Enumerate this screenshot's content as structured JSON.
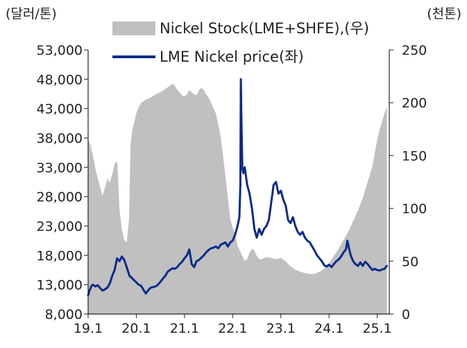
{
  "chart_data": {
    "type": "area+line",
    "title": "",
    "left_axis_unit": "(달러/톤)",
    "right_axis_unit": "(천톤)",
    "left_ylim": [
      8000,
      53000
    ],
    "right_ylim": [
      0,
      250
    ],
    "left_ticks": [
      "53,000",
      "48,000",
      "43,000",
      "38,000",
      "33,000",
      "28,000",
      "23,000",
      "18,000",
      "13,000",
      "8,000"
    ],
    "left_tick_values": [
      53000,
      48000,
      43000,
      38000,
      33000,
      28000,
      23000,
      18000,
      13000,
      8000
    ],
    "right_ticks": [
      "250",
      "200",
      "150",
      "100",
      "50",
      "0"
    ],
    "right_tick_values": [
      250,
      200,
      150,
      100,
      50,
      0
    ],
    "x_ticks": [
      "19.1",
      "20.1",
      "21.1",
      "22.1",
      "23.1",
      "24.1",
      "25.1"
    ],
    "x_tick_values": [
      2019.0,
      2020.0,
      2021.0,
      2022.0,
      2023.0,
      2024.0,
      2025.0
    ],
    "x_range": [
      2019.0,
      2025.25
    ],
    "colors": {
      "stock": "#c0c0c0",
      "price": "#0a2a8a",
      "axis": "#222222"
    },
    "legend": [
      {
        "label": "Nickel Stock(LME+SHFE),(우)",
        "kind": "area"
      },
      {
        "label": "LME Nickel price(좌)",
        "kind": "line"
      }
    ],
    "series": [
      {
        "name": "Nickel Stock(LME+SHFE)",
        "axis": "right",
        "kind": "area",
        "points": [
          [
            2019.0,
            165
          ],
          [
            2019.05,
            160
          ],
          [
            2019.1,
            150
          ],
          [
            2019.15,
            138
          ],
          [
            2019.2,
            128
          ],
          [
            2019.25,
            120
          ],
          [
            2019.3,
            112
          ],
          [
            2019.35,
            120
          ],
          [
            2019.4,
            128
          ],
          [
            2019.45,
            124
          ],
          [
            2019.5,
            132
          ],
          [
            2019.55,
            142
          ],
          [
            2019.6,
            145
          ],
          [
            2019.62,
            130
          ],
          [
            2019.65,
            100
          ],
          [
            2019.7,
            80
          ],
          [
            2019.75,
            70
          ],
          [
            2019.8,
            68
          ],
          [
            2019.85,
            90
          ],
          [
            2019.88,
            160
          ],
          [
            2019.92,
            175
          ],
          [
            2019.95,
            180
          ],
          [
            2020.0,
            190
          ],
          [
            2020.05,
            196
          ],
          [
            2020.1,
            200
          ],
          [
            2020.2,
            203
          ],
          [
            2020.3,
            205
          ],
          [
            2020.4,
            208
          ],
          [
            2020.5,
            210
          ],
          [
            2020.6,
            213
          ],
          [
            2020.7,
            216
          ],
          [
            2020.75,
            218
          ],
          [
            2020.8,
            216
          ],
          [
            2020.85,
            212
          ],
          [
            2020.9,
            210
          ],
          [
            2020.95,
            207
          ],
          [
            2021.0,
            206
          ],
          [
            2021.05,
            208
          ],
          [
            2021.1,
            212
          ],
          [
            2021.15,
            210
          ],
          [
            2021.2,
            208
          ],
          [
            2021.25,
            207
          ],
          [
            2021.3,
            212
          ],
          [
            2021.35,
            214
          ],
          [
            2021.4,
            212
          ],
          [
            2021.45,
            208
          ],
          [
            2021.5,
            205
          ],
          [
            2021.55,
            200
          ],
          [
            2021.6,
            195
          ],
          [
            2021.65,
            190
          ],
          [
            2021.7,
            180
          ],
          [
            2021.75,
            168
          ],
          [
            2021.8,
            150
          ],
          [
            2021.85,
            130
          ],
          [
            2021.9,
            110
          ],
          [
            2021.95,
            90
          ],
          [
            2022.0,
            82
          ],
          [
            2022.05,
            75
          ],
          [
            2022.1,
            65
          ],
          [
            2022.15,
            60
          ],
          [
            2022.2,
            55
          ],
          [
            2022.25,
            50
          ],
          [
            2022.3,
            52
          ],
          [
            2022.35,
            58
          ],
          [
            2022.4,
            62
          ],
          [
            2022.45,
            60
          ],
          [
            2022.5,
            55
          ],
          [
            2022.55,
            52
          ],
          [
            2022.6,
            52
          ],
          [
            2022.7,
            54
          ],
          [
            2022.8,
            53
          ],
          [
            2022.9,
            52
          ],
          [
            2023.0,
            53
          ],
          [
            2023.1,
            50
          ],
          [
            2023.2,
            45
          ],
          [
            2023.3,
            42
          ],
          [
            2023.4,
            40
          ],
          [
            2023.5,
            39
          ],
          [
            2023.6,
            38
          ],
          [
            2023.7,
            38
          ],
          [
            2023.8,
            40
          ],
          [
            2023.9,
            43
          ],
          [
            2024.0,
            48
          ],
          [
            2024.1,
            55
          ],
          [
            2024.2,
            62
          ],
          [
            2024.3,
            70
          ],
          [
            2024.4,
            78
          ],
          [
            2024.5,
            88
          ],
          [
            2024.6,
            98
          ],
          [
            2024.7,
            110
          ],
          [
            2024.8,
            125
          ],
          [
            2024.9,
            140
          ],
          [
            2025.0,
            165
          ],
          [
            2025.05,
            175
          ],
          [
            2025.1,
            182
          ],
          [
            2025.15,
            190
          ],
          [
            2025.2,
            196
          ]
        ]
      },
      {
        "name": "LME Nickel price",
        "axis": "left",
        "kind": "line",
        "points": [
          [
            2019.0,
            11200
          ],
          [
            2019.03,
            12000
          ],
          [
            2019.07,
            12800
          ],
          [
            2019.1,
            13000
          ],
          [
            2019.15,
            12700
          ],
          [
            2019.2,
            12900
          ],
          [
            2019.25,
            12400
          ],
          [
            2019.3,
            12000
          ],
          [
            2019.35,
            12200
          ],
          [
            2019.4,
            12500
          ],
          [
            2019.45,
            13200
          ],
          [
            2019.5,
            14500
          ],
          [
            2019.55,
            15500
          ],
          [
            2019.6,
            17500
          ],
          [
            2019.65,
            17000
          ],
          [
            2019.7,
            17800
          ],
          [
            2019.75,
            17200
          ],
          [
            2019.78,
            16500
          ],
          [
            2019.82,
            15500
          ],
          [
            2019.86,
            14500
          ],
          [
            2019.9,
            14200
          ],
          [
            2019.95,
            13800
          ],
          [
            2020.0,
            13400
          ],
          [
            2020.05,
            13000
          ],
          [
            2020.1,
            12800
          ],
          [
            2020.15,
            12100
          ],
          [
            2020.2,
            11500
          ],
          [
            2020.25,
            12100
          ],
          [
            2020.3,
            12500
          ],
          [
            2020.35,
            12600
          ],
          [
            2020.4,
            12700
          ],
          [
            2020.45,
            13000
          ],
          [
            2020.5,
            13500
          ],
          [
            2020.55,
            14000
          ],
          [
            2020.6,
            14500
          ],
          [
            2020.65,
            15200
          ],
          [
            2020.7,
            15500
          ],
          [
            2020.75,
            15800
          ],
          [
            2020.8,
            15700
          ],
          [
            2020.85,
            16000
          ],
          [
            2020.9,
            16500
          ],
          [
            2020.95,
            16900
          ],
          [
            2021.0,
            17500
          ],
          [
            2021.05,
            18000
          ],
          [
            2021.1,
            19000
          ],
          [
            2021.15,
            16500
          ],
          [
            2021.2,
            16000
          ],
          [
            2021.25,
            17000
          ],
          [
            2021.3,
            17200
          ],
          [
            2021.35,
            17600
          ],
          [
            2021.4,
            18000
          ],
          [
            2021.45,
            18500
          ],
          [
            2021.5,
            18900
          ],
          [
            2021.55,
            19200
          ],
          [
            2021.6,
            19300
          ],
          [
            2021.65,
            19500
          ],
          [
            2021.7,
            19200
          ],
          [
            2021.75,
            19800
          ],
          [
            2021.8,
            20000
          ],
          [
            2021.85,
            20200
          ],
          [
            2021.9,
            19500
          ],
          [
            2021.95,
            20200
          ],
          [
            2022.0,
            20500
          ],
          [
            2022.05,
            21500
          ],
          [
            2022.1,
            23000
          ],
          [
            2022.14,
            24500
          ],
          [
            2022.16,
            30000
          ],
          [
            2022.17,
            48000
          ],
          [
            2022.18,
            42000
          ],
          [
            2022.2,
            33000
          ],
          [
            2022.22,
            32000
          ],
          [
            2022.25,
            33000
          ],
          [
            2022.3,
            30000
          ],
          [
            2022.35,
            28500
          ],
          [
            2022.4,
            26000
          ],
          [
            2022.45,
            22500
          ],
          [
            2022.5,
            21000
          ],
          [
            2022.55,
            22500
          ],
          [
            2022.6,
            21500
          ],
          [
            2022.65,
            22500
          ],
          [
            2022.7,
            23000
          ],
          [
            2022.75,
            24000
          ],
          [
            2022.8,
            27000
          ],
          [
            2022.85,
            30000
          ],
          [
            2022.9,
            30500
          ],
          [
            2022.95,
            28500
          ],
          [
            2023.0,
            29000
          ],
          [
            2023.05,
            27500
          ],
          [
            2023.1,
            26500
          ],
          [
            2023.15,
            24000
          ],
          [
            2023.2,
            23500
          ],
          [
            2023.25,
            24500
          ],
          [
            2023.3,
            23000
          ],
          [
            2023.35,
            22000
          ],
          [
            2023.4,
            21500
          ],
          [
            2023.45,
            22000
          ],
          [
            2023.5,
            21000
          ],
          [
            2023.55,
            20500
          ],
          [
            2023.6,
            20200
          ],
          [
            2023.65,
            19500
          ],
          [
            2023.7,
            18800
          ],
          [
            2023.75,
            18000
          ],
          [
            2023.8,
            17500
          ],
          [
            2023.85,
            17000
          ],
          [
            2023.9,
            16300
          ],
          [
            2023.95,
            16100
          ],
          [
            2024.0,
            16400
          ],
          [
            2024.05,
            16000
          ],
          [
            2024.1,
            16500
          ],
          [
            2024.15,
            17000
          ],
          [
            2024.2,
            17300
          ],
          [
            2024.25,
            17800
          ],
          [
            2024.3,
            18500
          ],
          [
            2024.35,
            19000
          ],
          [
            2024.38,
            20500
          ],
          [
            2024.42,
            19000
          ],
          [
            2024.45,
            18000
          ],
          [
            2024.5,
            17000
          ],
          [
            2024.55,
            16500
          ],
          [
            2024.6,
            16200
          ],
          [
            2024.65,
            16800
          ],
          [
            2024.7,
            16200
          ],
          [
            2024.75,
            16900
          ],
          [
            2024.8,
            16500
          ],
          [
            2024.85,
            16000
          ],
          [
            2024.9,
            15500
          ],
          [
            2024.95,
            15700
          ],
          [
            2025.0,
            15500
          ],
          [
            2025.05,
            15400
          ],
          [
            2025.1,
            15600
          ],
          [
            2025.15,
            15700
          ],
          [
            2025.2,
            16200
          ]
        ]
      }
    ]
  }
}
